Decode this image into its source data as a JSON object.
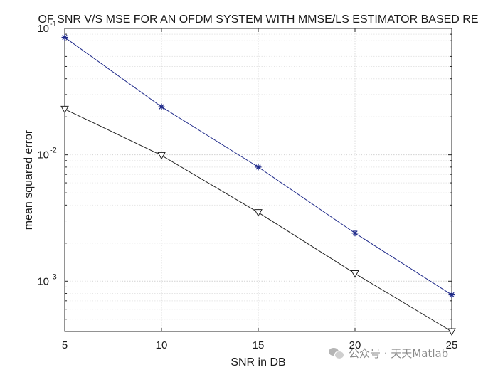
{
  "chart_data": {
    "type": "line",
    "title": "OF SNR V/S MSE FOR AN OFDM SYSTEM WITH MMSE/LS ESTIMATOR BASED RE",
    "xlabel": "SNR in DB",
    "ylabel": "mean squared error",
    "x": [
      5,
      10,
      15,
      20,
      25
    ],
    "xticks": [
      5,
      10,
      15,
      20,
      25
    ],
    "xlim": [
      5,
      25
    ],
    "yscale": "log",
    "ylim": [
      0.0004,
      0.1
    ],
    "yticks": [
      {
        "value": 0.1,
        "base": "10",
        "exp": "-1"
      },
      {
        "value": 0.01,
        "base": "10",
        "exp": "-2"
      },
      {
        "value": 0.001,
        "base": "10",
        "exp": "-3"
      }
    ],
    "grid": true,
    "series": [
      {
        "marker": "asterisk",
        "color": "#1f2a8a",
        "values": [
          0.085,
          0.024,
          0.008,
          0.0024,
          0.00078
        ]
      },
      {
        "marker": "triangle-down",
        "color": "#222222",
        "values": [
          0.023,
          0.0099,
          0.0035,
          0.00115,
          0.0004
        ]
      }
    ]
  },
  "watermark": {
    "text": "公众号 · 天天Matlab"
  }
}
